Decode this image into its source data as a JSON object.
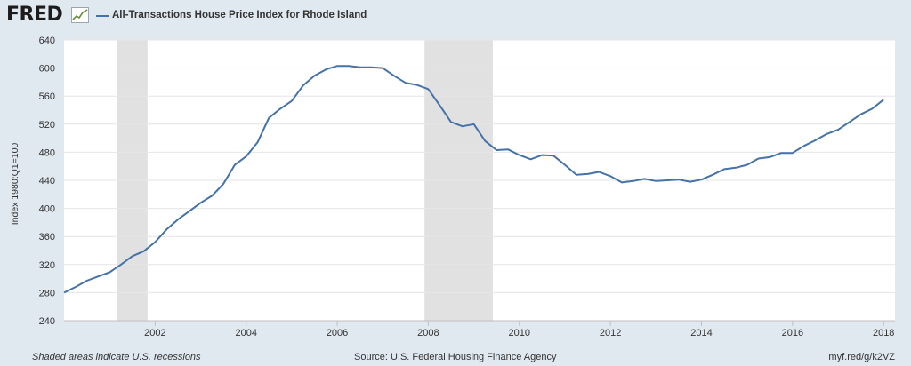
{
  "header": {
    "logo": "FRED",
    "legend_label": "All-Transactions House Price Index for Rhode Island"
  },
  "footer": {
    "note": "Shaded areas indicate U.S. recessions",
    "source": "Source: U.S. Federal Housing Finance Agency",
    "short_url": "myf.red/g/k2VZ"
  },
  "colors": {
    "line": "#4572a7",
    "recession": "#e1e1e1",
    "background": "#e1e9f0",
    "plot_background": "#ffffff"
  },
  "chart_data": {
    "type": "line",
    "title": "",
    "xlabel": "",
    "ylabel": "Index 1980:Q1=100",
    "ylim": [
      240,
      640
    ],
    "xlim": [
      2000.0,
      2018.25
    ],
    "grid": true,
    "y_ticks": [
      240,
      280,
      320,
      360,
      400,
      440,
      480,
      520,
      560,
      600,
      640
    ],
    "x_ticks": [
      "2002",
      "2004",
      "2006",
      "2008",
      "2010",
      "2012",
      "2014",
      "2016",
      "2018"
    ],
    "recessions": [
      {
        "start": "2001-03",
        "end": "2001-11"
      },
      {
        "start": "2007-12",
        "end": "2009-06"
      }
    ],
    "series": [
      {
        "x": [
          "2000-Q1",
          "2000-Q2",
          "2000-Q3",
          "2000-Q4",
          "2001-Q1",
          "2001-Q2",
          "2001-Q3",
          "2001-Q4",
          "2002-Q1",
          "2002-Q2",
          "2002-Q3",
          "2002-Q4",
          "2003-Q1",
          "2003-Q2",
          "2003-Q3",
          "2003-Q4",
          "2004-Q1",
          "2004-Q2",
          "2004-Q3",
          "2004-Q4",
          "2005-Q1",
          "2005-Q2",
          "2005-Q3",
          "2005-Q4",
          "2006-Q1",
          "2006-Q2",
          "2006-Q3",
          "2006-Q4",
          "2007-Q1",
          "2007-Q2",
          "2007-Q3",
          "2007-Q4",
          "2008-Q1",
          "2008-Q2",
          "2008-Q3",
          "2008-Q4",
          "2009-Q1",
          "2009-Q2",
          "2009-Q3",
          "2009-Q4",
          "2010-Q1",
          "2010-Q2",
          "2010-Q3",
          "2010-Q4",
          "2011-Q1",
          "2011-Q2",
          "2011-Q3",
          "2011-Q4",
          "2012-Q1",
          "2012-Q2",
          "2012-Q3",
          "2012-Q4",
          "2013-Q1",
          "2013-Q2",
          "2013-Q3",
          "2013-Q4",
          "2014-Q1",
          "2014-Q2",
          "2014-Q3",
          "2014-Q4",
          "2015-Q1",
          "2015-Q2",
          "2015-Q3",
          "2015-Q4",
          "2016-Q1",
          "2016-Q2",
          "2016-Q3",
          "2016-Q4",
          "2017-Q1",
          "2017-Q2",
          "2017-Q3",
          "2017-Q4",
          "2018-Q1"
        ],
        "values": [
          280,
          288,
          297,
          303,
          309,
          320,
          332,
          339,
          352,
          370,
          384,
          396,
          408,
          418,
          435,
          462,
          474,
          494,
          529,
          542,
          553,
          575,
          589,
          598,
          603,
          603,
          601,
          601,
          600,
          589,
          579,
          576,
          570,
          547,
          523,
          517,
          520,
          496,
          483,
          484,
          476,
          470,
          476,
          475,
          462,
          448,
          449,
          452,
          446,
          437,
          439,
          442,
          439,
          440,
          441,
          438,
          441,
          448,
          456,
          458,
          462,
          471,
          473,
          479,
          479,
          489,
          497,
          506,
          512,
          523,
          534,
          542,
          555
        ]
      }
    ]
  }
}
